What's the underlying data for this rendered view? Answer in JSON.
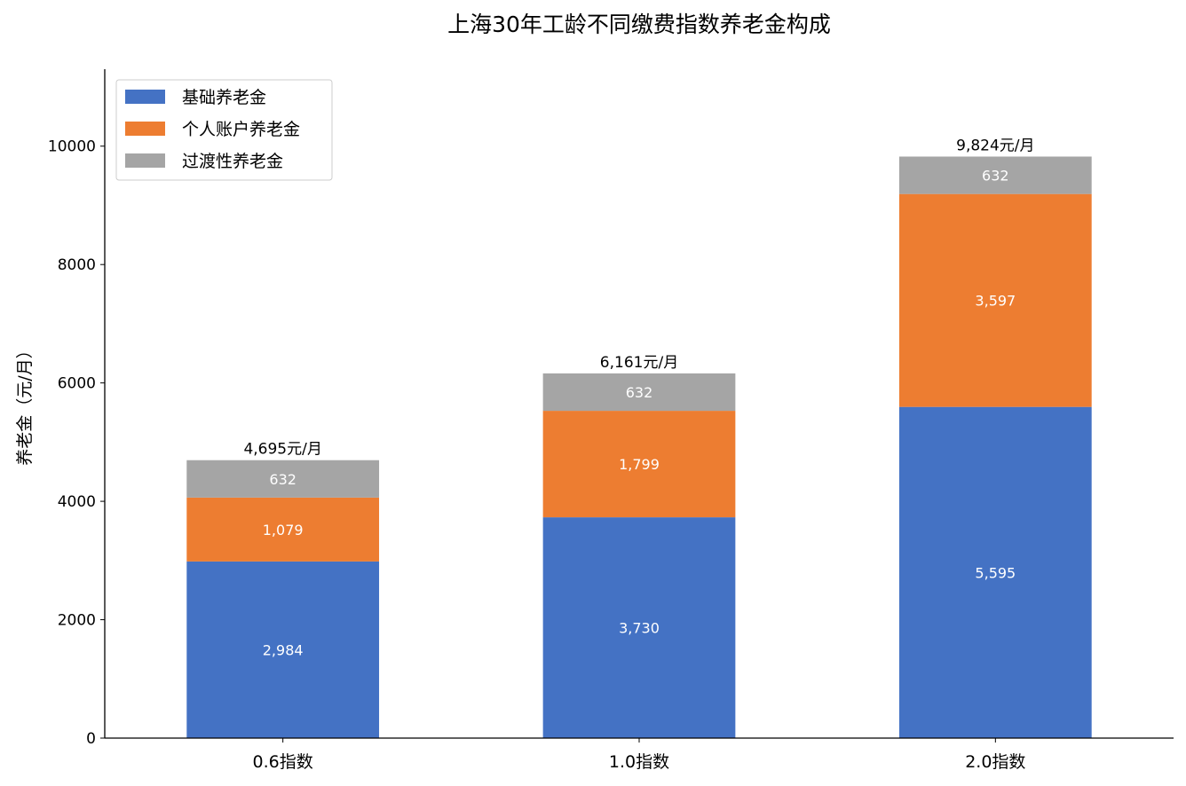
{
  "chart_data": {
    "type": "bar",
    "stacked": true,
    "title": "上海30年工龄不同缴费指数养老金构成",
    "ylabel": "养老金（元/月）",
    "xlabel": "",
    "categories": [
      "0.6指数",
      "1.0指数",
      "2.0指数"
    ],
    "ylim": [
      0,
      11300
    ],
    "yticks": [
      0,
      2000,
      4000,
      6000,
      8000,
      10000
    ],
    "ytick_labels": [
      "0",
      "2000",
      "4000",
      "6000",
      "8000",
      "10000"
    ],
    "grid": false,
    "legend_position": "top-left",
    "series": [
      {
        "name": "基础养老金",
        "color": "#4472C4",
        "values": [
          2984,
          3730,
          5595
        ],
        "labels": [
          "2,984",
          "3,730",
          "5,595"
        ]
      },
      {
        "name": "个人账户养老金",
        "color": "#ED7D31",
        "values": [
          1079,
          1799,
          3597
        ],
        "labels": [
          "1,079",
          "1,799",
          "3,597"
        ]
      },
      {
        "name": "过渡性养老金",
        "color": "#A5A5A5",
        "values": [
          632,
          632,
          632
        ],
        "labels": [
          "632",
          "632",
          "632"
        ]
      }
    ],
    "totals": [
      4695,
      6161,
      9824
    ],
    "total_labels": [
      "4,695元/月",
      "6,161元/月",
      "9,824元/月"
    ]
  }
}
